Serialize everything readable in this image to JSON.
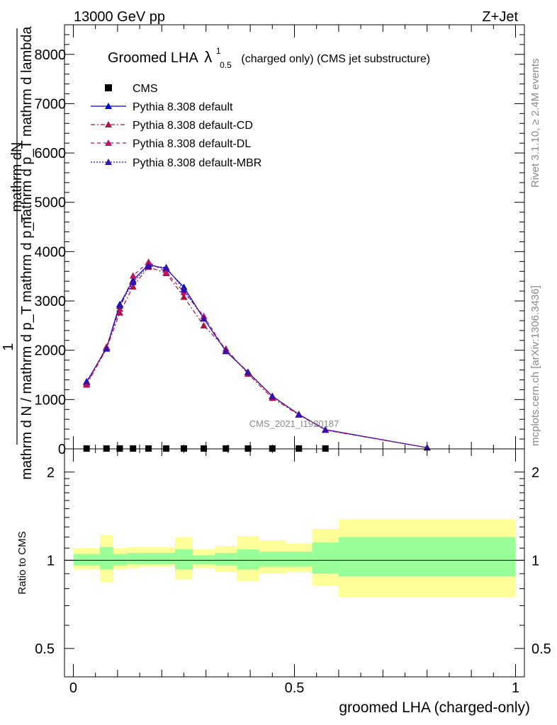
{
  "header": {
    "energy_label": "13000 GeV pp",
    "process_label": "Z+Jet",
    "plot_title_main": "Groomed LHA",
    "plot_title_lambda": "λ",
    "plot_title_sup": "1",
    "plot_title_sub": "0.5",
    "plot_title_rest": "(charged only) (CMS jet substructure)",
    "watermark": "CMS_2021_I1920187",
    "side_label_top": "Rivet 3.1.10, ≥ 2.4M events",
    "side_label_bottom": "mcplots.cern.ch [arXiv:1306.3436]"
  },
  "main_ylabel": {
    "numerator_1": "mathrm dN",
    "numerator_2": "mathrm d p_T mathrm d lambda",
    "one": "1",
    "denominator": "mathrm d N / mathrm d p_T mathrm d p_T"
  },
  "ratio_ylabel": "Ratio to CMS",
  "colors": {
    "default": "#0000cc",
    "cd": "#aa1144",
    "dl": "#bb1166",
    "mbr": "#3311aa",
    "band_outer": "#ffff99",
    "band_inner": "#99ff99"
  },
  "chart_data": [
    {
      "type": "line",
      "panel": "main",
      "xlabel": "groomed LHA (charged-only)",
      "xlim": [
        -0.02,
        1.02
      ],
      "ylim": [
        0,
        8600
      ],
      "yticks": [
        0,
        1000,
        2000,
        3000,
        4000,
        5000,
        6000,
        7000,
        8000
      ],
      "ytick_labels": [
        "0",
        "1000",
        "2000",
        "3000",
        "4000",
        "5000",
        "6000",
        "7000",
        "8000"
      ],
      "legend": [
        "CMS",
        "Pythia 8.308 default",
        "Pythia 8.308 default-CD",
        "Pythia 8.308 default-DL",
        "Pythia 8.308 default-MBR"
      ],
      "cms": {
        "name": "CMS",
        "x": [
          0.03,
          0.075,
          0.105,
          0.135,
          0.17,
          0.21,
          0.25,
          0.295,
          0.345,
          0.395,
          0.45,
          0.51,
          0.57
        ],
        "y": [
          0,
          0,
          0,
          0,
          0,
          0,
          0,
          0,
          0,
          0,
          0,
          0,
          0
        ]
      },
      "x": [
        0.03,
        0.075,
        0.105,
        0.135,
        0.17,
        0.21,
        0.25,
        0.295,
        0.345,
        0.395,
        0.45,
        0.51,
        0.57,
        0.8
      ],
      "series": [
        {
          "name": "Pythia 8.308 default",
          "style": "solid",
          "color_key": "default",
          "values": [
            1350,
            2050,
            2930,
            3420,
            3740,
            3650,
            3280,
            2640,
            1980,
            1550,
            1070,
            700,
            390,
            25
          ]
        },
        {
          "name": "Pythia 8.308 default-CD",
          "style": "dashdot",
          "color_key": "cd",
          "values": [
            1300,
            2030,
            2760,
            3290,
            3690,
            3560,
            3080,
            2500,
            2030,
            1520,
            1030,
            690,
            380,
            25
          ]
        },
        {
          "name": "Pythia 8.308 default-DL",
          "style": "dashed",
          "color_key": "dl",
          "values": [
            1320,
            2070,
            2840,
            3510,
            3790,
            3580,
            3180,
            2690,
            1990,
            1560,
            1060,
            700,
            385,
            25
          ]
        },
        {
          "name": "Pythia 8.308 default-MBR",
          "style": "dotted",
          "color_key": "mbr",
          "values": [
            1370,
            2030,
            2900,
            3380,
            3710,
            3680,
            3230,
            2640,
            1980,
            1560,
            1070,
            700,
            390,
            25
          ]
        }
      ]
    },
    {
      "type": "area",
      "panel": "ratio",
      "xlabel": "groomed LHA (charged-only)",
      "ylabel": "Ratio to CMS",
      "xlim": [
        -0.02,
        1.02
      ],
      "ylim": [
        0.4,
        2.4
      ],
      "log_y": true,
      "xticks": [
        0,
        0.5,
        1
      ],
      "xtick_labels": [
        "0",
        "0.5",
        "1"
      ],
      "yticks": [
        0.5,
        1,
        2
      ],
      "ytick_labels": [
        "0.5",
        "1",
        "2"
      ],
      "reference_line": 1,
      "bins": [
        {
          "lo": 0.0,
          "hi": 0.06,
          "outer": [
            0.93,
            1.1
          ],
          "inner": [
            0.96,
            1.05
          ]
        },
        {
          "lo": 0.06,
          "hi": 0.09,
          "outer": [
            0.84,
            1.22
          ],
          "inner": [
            0.93,
            1.11
          ]
        },
        {
          "lo": 0.09,
          "hi": 0.12,
          "outer": [
            0.93,
            1.1
          ],
          "inner": [
            0.96,
            1.05
          ]
        },
        {
          "lo": 0.12,
          "hi": 0.15,
          "outer": [
            0.94,
            1.11
          ],
          "inner": [
            0.97,
            1.06
          ]
        },
        {
          "lo": 0.15,
          "hi": 0.19,
          "outer": [
            0.95,
            1.11
          ],
          "inner": [
            0.97,
            1.06
          ]
        },
        {
          "lo": 0.19,
          "hi": 0.23,
          "outer": [
            0.95,
            1.11
          ],
          "inner": [
            0.97,
            1.06
          ]
        },
        {
          "lo": 0.23,
          "hi": 0.27,
          "outer": [
            0.86,
            1.2
          ],
          "inner": [
            0.93,
            1.09
          ]
        },
        {
          "lo": 0.27,
          "hi": 0.32,
          "outer": [
            0.94,
            1.09
          ],
          "inner": [
            0.97,
            1.04
          ]
        },
        {
          "lo": 0.32,
          "hi": 0.37,
          "outer": [
            0.91,
            1.12
          ],
          "inner": [
            0.96,
            1.06
          ]
        },
        {
          "lo": 0.37,
          "hi": 0.42,
          "outer": [
            0.85,
            1.21
          ],
          "inner": [
            0.93,
            1.09
          ]
        },
        {
          "lo": 0.42,
          "hi": 0.48,
          "outer": [
            0.9,
            1.17
          ],
          "inner": [
            0.95,
            1.07
          ]
        },
        {
          "lo": 0.48,
          "hi": 0.54,
          "outer": [
            0.91,
            1.14
          ],
          "inner": [
            0.95,
            1.07
          ]
        },
        {
          "lo": 0.54,
          "hi": 0.6,
          "outer": [
            0.82,
            1.28
          ],
          "inner": [
            0.9,
            1.15
          ]
        },
        {
          "lo": 0.6,
          "hi": 1.0,
          "outer": [
            0.75,
            1.38
          ],
          "inner": [
            0.88,
            1.2
          ]
        }
      ]
    }
  ]
}
